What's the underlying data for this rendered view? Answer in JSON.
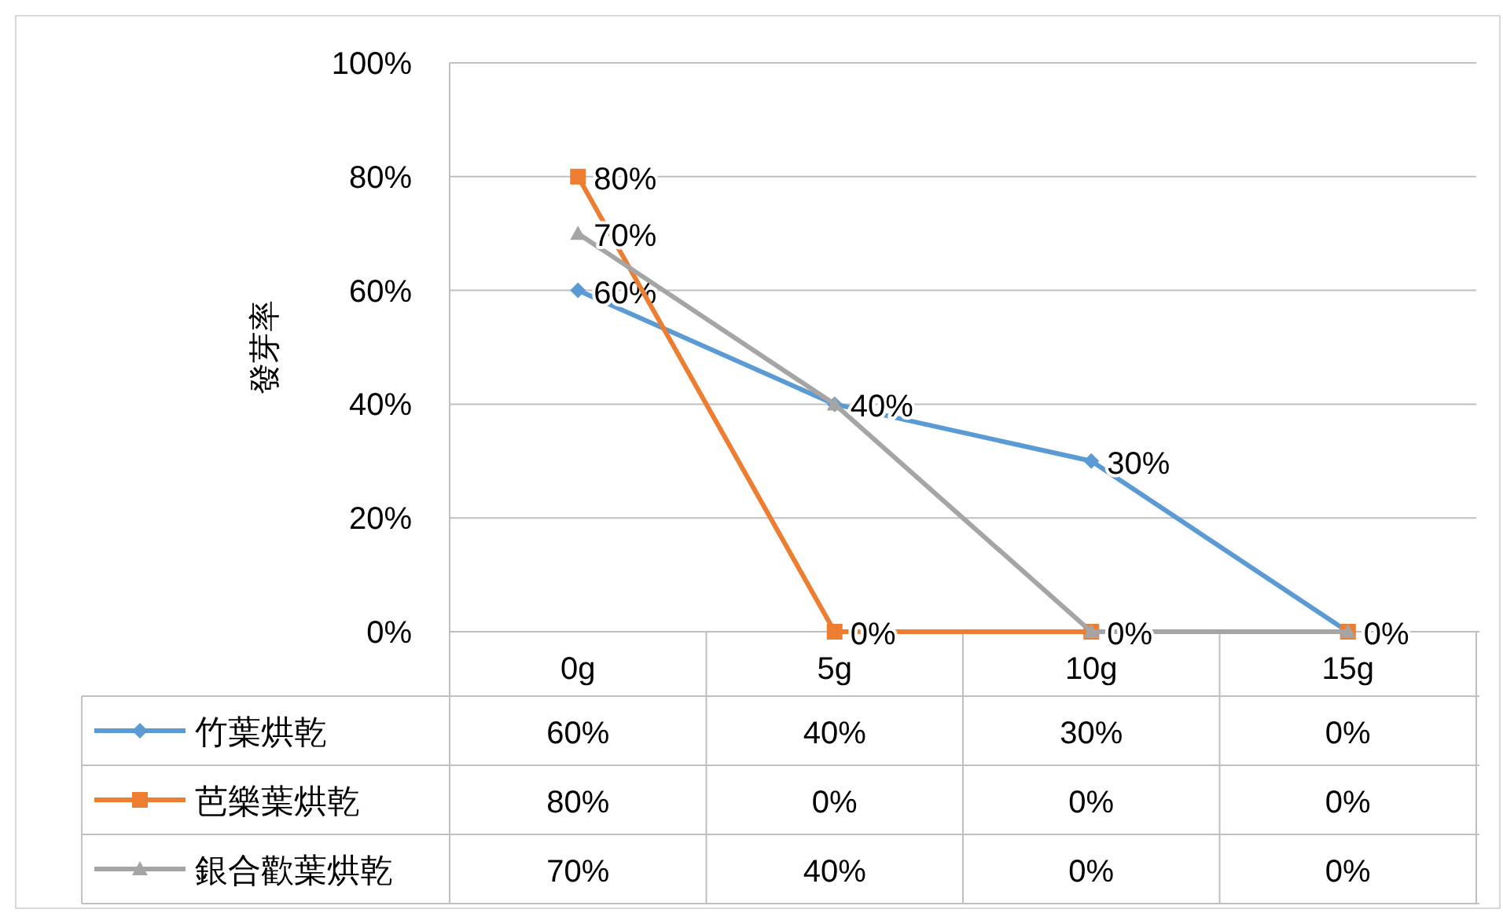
{
  "chart_data": {
    "type": "line",
    "ylabel": "發芽率",
    "categories": [
      "0g",
      "5g",
      "10g",
      "15g"
    ],
    "ylim": [
      0,
      100
    ],
    "yticks": [
      {
        "value": 0,
        "label": "0%"
      },
      {
        "value": 20,
        "label": "20%"
      },
      {
        "value": 40,
        "label": "40%"
      },
      {
        "value": 60,
        "label": "60%"
      },
      {
        "value": 80,
        "label": "80%"
      },
      {
        "value": 100,
        "label": "100%"
      }
    ],
    "grid": "y",
    "legend": "bottom",
    "series": [
      {
        "name": "竹葉烘乾",
        "color": "#5b9bd5",
        "marker": "diamond",
        "values": [
          60,
          40,
          30,
          0
        ],
        "value_labels": [
          "60%",
          "40%",
          "30%",
          "0%"
        ]
      },
      {
        "name": "芭樂葉烘乾",
        "color": "#ed7d31",
        "marker": "square",
        "values": [
          80,
          0,
          0,
          0
        ],
        "value_labels": [
          "80%",
          "0%",
          "0%",
          "0%"
        ]
      },
      {
        "name": "銀合歡葉烘乾",
        "color": "#a5a5a5",
        "marker": "triangle",
        "values": [
          70,
          40,
          0,
          0
        ],
        "value_labels": [
          "70%",
          "40%",
          "0%",
          "0%"
        ]
      }
    ]
  }
}
